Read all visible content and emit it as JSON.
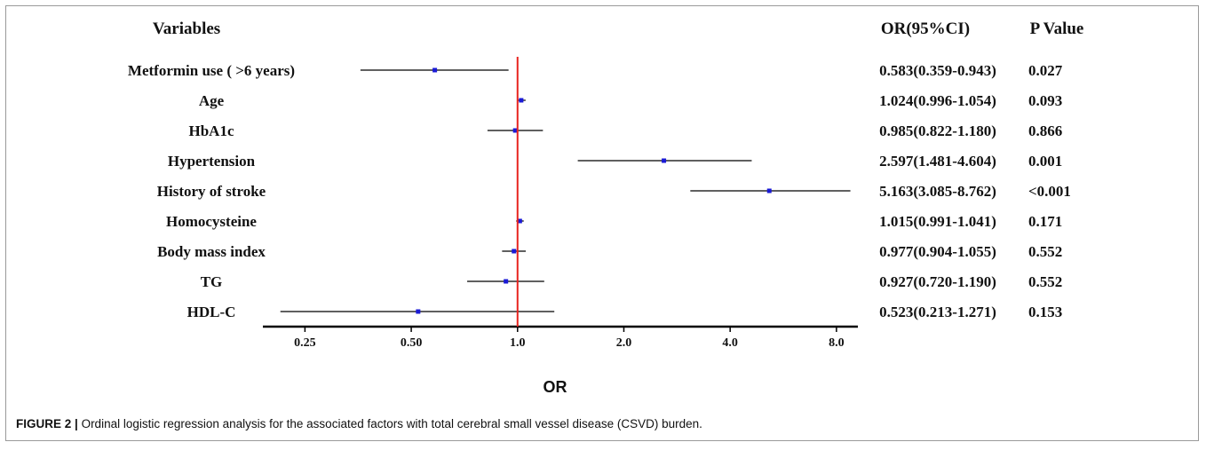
{
  "figure_label": "FIGURE 2 |",
  "caption": "Ordinal logistic regression analysis for the associated factors with total cerebral small vessel disease (CSVD) burden.",
  "colors": {
    "reference_line": "#e8231f",
    "point": "#1a1ad6",
    "ci": "#000000"
  },
  "chart_data": {
    "type": "forest",
    "headers": {
      "variables": "Variables",
      "or_ci": "OR(95%CI)",
      "p": "P Value"
    },
    "xlabel": "OR",
    "x_scale": "log2",
    "xlim": [
      0.19,
      9.2
    ],
    "reference_value": 1.0,
    "ticks": [
      {
        "value": 0.25,
        "label": "0.25"
      },
      {
        "value": 0.5,
        "label": "0.50"
      },
      {
        "value": 1.0,
        "label": "1.0"
      },
      {
        "value": 2.0,
        "label": "2.0"
      },
      {
        "value": 4.0,
        "label": "4.0"
      },
      {
        "value": 8.0,
        "label": "8.0"
      }
    ],
    "rows": [
      {
        "variable": "Metformin use ( >6 years)",
        "or": 0.583,
        "lo": 0.359,
        "hi": 0.943,
        "or_ci_text": "0.583(0.359-0.943)",
        "p_text": "0.027"
      },
      {
        "variable": "Age",
        "or": 1.024,
        "lo": 0.996,
        "hi": 1.054,
        "or_ci_text": "1.024(0.996-1.054)",
        "p_text": "0.093"
      },
      {
        "variable": "HbA1c",
        "or": 0.985,
        "lo": 0.822,
        "hi": 1.18,
        "or_ci_text": "0.985(0.822-1.180)",
        "p_text": "0.866"
      },
      {
        "variable": "Hypertension",
        "or": 2.597,
        "lo": 1.481,
        "hi": 4.604,
        "or_ci_text": "2.597(1.481-4.604)",
        "p_text": "0.001"
      },
      {
        "variable": "History of stroke",
        "or": 5.163,
        "lo": 3.085,
        "hi": 8.762,
        "or_ci_text": "5.163(3.085-8.762)",
        "p_text": "<0.001"
      },
      {
        "variable": "Homocysteine",
        "or": 1.015,
        "lo": 0.991,
        "hi": 1.041,
        "or_ci_text": "1.015(0.991-1.041)",
        "p_text": "0.171"
      },
      {
        "variable": "Body mass index",
        "or": 0.977,
        "lo": 0.904,
        "hi": 1.055,
        "or_ci_text": "0.977(0.904-1.055)",
        "p_text": "0.552"
      },
      {
        "variable": "TG",
        "or": 0.927,
        "lo": 0.72,
        "hi": 1.19,
        "or_ci_text": "0.927(0.720-1.190)",
        "p_text": "0.552"
      },
      {
        "variable": "HDL-C",
        "or": 0.523,
        "lo": 0.213,
        "hi": 1.271,
        "or_ci_text": "0.523(0.213-1.271)",
        "p_text": "0.153"
      }
    ]
  }
}
